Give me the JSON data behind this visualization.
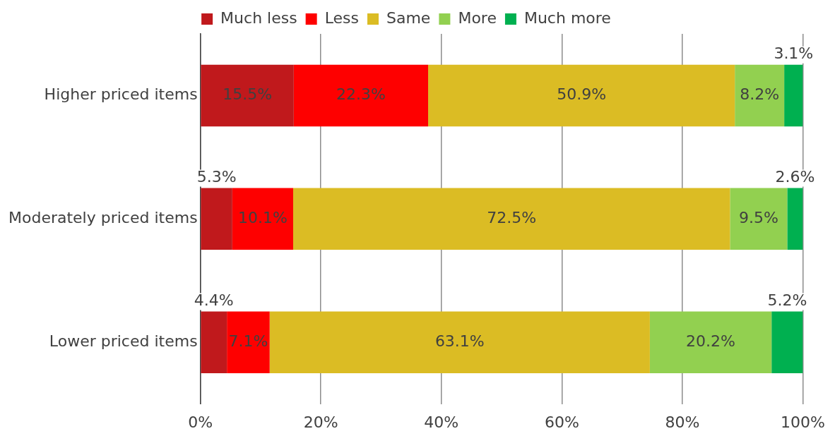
{
  "chart_data": {
    "type": "bar",
    "orientation": "horizontal",
    "stacked": true,
    "legend": "top",
    "grid": "x",
    "categories": [
      "Higher priced items",
      "Moderately priced items",
      "Lower priced items"
    ],
    "xlim": [
      0,
      100
    ],
    "xticks": [
      {
        "value": 0,
        "label": "0%"
      },
      {
        "value": 20,
        "label": "20%"
      },
      {
        "value": 40,
        "label": "40%"
      },
      {
        "value": 60,
        "label": "60%"
      },
      {
        "value": 80,
        "label": "80%"
      },
      {
        "value": 100,
        "label": "100%"
      }
    ],
    "series": [
      {
        "name": "Much less",
        "color": "#c0191c",
        "values": [
          15.5,
          5.3,
          4.4
        ],
        "value_labels": [
          "15.5%",
          "5.3%",
          "4.4%"
        ]
      },
      {
        "name": "Less",
        "color": "#fe0000",
        "values": [
          22.3,
          10.1,
          7.1
        ],
        "value_labels": [
          "22.3%",
          "10.1%",
          "7.1%"
        ]
      },
      {
        "name": "Same",
        "color": "#dbbc24",
        "values": [
          50.9,
          72.5,
          63.1
        ],
        "value_labels": [
          "50.9%",
          "72.5%",
          "63.1%"
        ]
      },
      {
        "name": "More",
        "color": "#92d050",
        "values": [
          8.2,
          9.5,
          20.2
        ],
        "value_labels": [
          "8.2%",
          "9.5%",
          "20.2%"
        ]
      },
      {
        "name": "Much more",
        "color": "#00b050",
        "values": [
          3.1,
          2.6,
          5.2
        ],
        "value_labels": [
          "3.1%",
          "2.6%",
          "5.2%"
        ]
      }
    ]
  }
}
